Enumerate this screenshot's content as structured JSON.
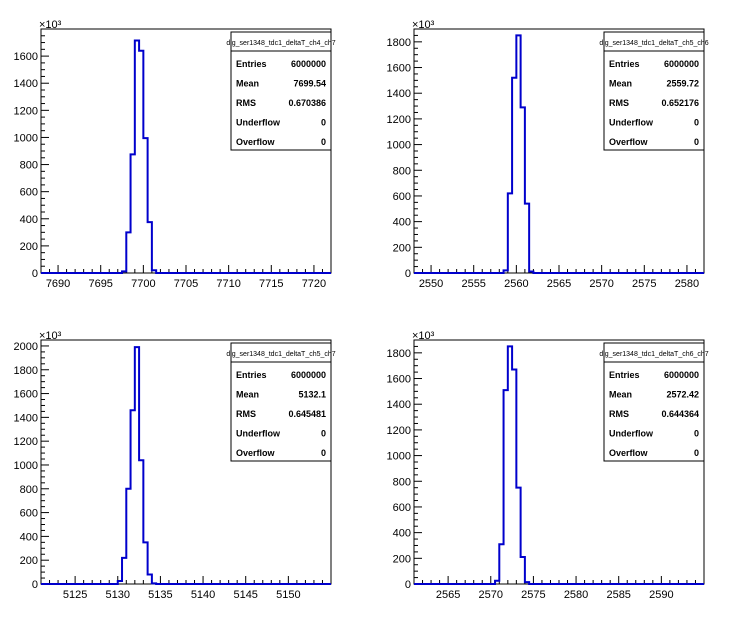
{
  "chart_data": [
    {
      "type": "histogram",
      "stats_title": "dig_ser1348_tdc1_deltaT_ch4_ch7",
      "exponent_label": "×10³",
      "xlim": [
        7688,
        7722
      ],
      "ylim": [
        0,
        1800
      ],
      "xticks": [
        7690,
        7695,
        7700,
        7705,
        7710,
        7715,
        7720
      ],
      "yticks": [
        0,
        200,
        400,
        600,
        800,
        1000,
        1200,
        1400,
        1600
      ],
      "bin_width": 0.5,
      "bins": [
        [
          7697.5,
          12
        ],
        [
          7698,
          300
        ],
        [
          7698.5,
          875
        ],
        [
          7699,
          1715
        ],
        [
          7699.5,
          1640
        ],
        [
          7700,
          995
        ],
        [
          7700.5,
          375
        ],
        [
          7701,
          20
        ]
      ],
      "stats": [
        {
          "label": "Entries",
          "value": "6000000"
        },
        {
          "label": "Mean",
          "value": "7699.54"
        },
        {
          "label": "RMS",
          "value": "0.670386"
        },
        {
          "label": "Underflow",
          "value": "0"
        },
        {
          "label": "Overflow",
          "value": "0"
        }
      ]
    },
    {
      "type": "histogram",
      "stats_title": "dig_ser1348_tdc1_deltaT_ch5_ch6",
      "exponent_label": "×10³",
      "xlim": [
        2548,
        2582
      ],
      "ylim": [
        0,
        1900
      ],
      "xticks": [
        2550,
        2555,
        2560,
        2565,
        2570,
        2575,
        2580
      ],
      "yticks": [
        0,
        200,
        400,
        600,
        800,
        1000,
        1200,
        1400,
        1600,
        1800
      ],
      "bin_width": 0.5,
      "bins": [
        [
          2558.5,
          20
        ],
        [
          2559,
          620
        ],
        [
          2559.5,
          1520
        ],
        [
          2560,
          1850
        ],
        [
          2560.5,
          1290
        ],
        [
          2561,
          540
        ],
        [
          2561.5,
          12
        ]
      ],
      "stats": [
        {
          "label": "Entries",
          "value": "6000000"
        },
        {
          "label": "Mean",
          "value": "2559.72"
        },
        {
          "label": "RMS",
          "value": "0.652176"
        },
        {
          "label": "Underflow",
          "value": "0"
        },
        {
          "label": "Overflow",
          "value": "0"
        }
      ]
    },
    {
      "type": "histogram",
      "stats_title": "dig_ser1348_tdc1_deltaT_ch5_ch7",
      "exponent_label": "×10³",
      "xlim": [
        5121,
        5155
      ],
      "ylim": [
        0,
        2050
      ],
      "xticks": [
        5125,
        5130,
        5135,
        5140,
        5145,
        5150
      ],
      "yticks": [
        0,
        200,
        400,
        600,
        800,
        1000,
        1200,
        1400,
        1600,
        1800,
        2000
      ],
      "bin_width": 0.5,
      "bins": [
        [
          5130,
          25
        ],
        [
          5130.5,
          220
        ],
        [
          5131,
          800
        ],
        [
          5131.5,
          1460
        ],
        [
          5132,
          1990
        ],
        [
          5132.5,
          1040
        ],
        [
          5133,
          350
        ],
        [
          5133.5,
          80
        ],
        [
          5134,
          5
        ]
      ],
      "stats": [
        {
          "label": "Entries",
          "value": "6000000"
        },
        {
          "label": "Mean",
          "value": "5132.1"
        },
        {
          "label": "RMS",
          "value": "0.645481"
        },
        {
          "label": "Underflow",
          "value": "0"
        },
        {
          "label": "Overflow",
          "value": "0"
        }
      ]
    },
    {
      "type": "histogram",
      "stats_title": "dig_ser1348_tdc1_deltaT_ch6_ch7",
      "exponent_label": "×10³",
      "xlim": [
        2561,
        2595
      ],
      "ylim": [
        0,
        1900
      ],
      "xticks": [
        2565,
        2570,
        2575,
        2580,
        2585,
        2590
      ],
      "yticks": [
        0,
        200,
        400,
        600,
        800,
        1000,
        1200,
        1400,
        1600,
        1800
      ],
      "bin_width": 0.5,
      "bins": [
        [
          2570.5,
          25
        ],
        [
          2571,
          310
        ],
        [
          2571.5,
          1510
        ],
        [
          2572,
          1850
        ],
        [
          2572.5,
          1670
        ],
        [
          2573,
          750
        ],
        [
          2573.5,
          210
        ],
        [
          2574,
          15
        ]
      ],
      "stats": [
        {
          "label": "Entries",
          "value": "6000000"
        },
        {
          "label": "Mean",
          "value": "2572.42"
        },
        {
          "label": "RMS",
          "value": "0.644364"
        },
        {
          "label": "Underflow",
          "value": "0"
        },
        {
          "label": "Overflow",
          "value": "0"
        }
      ]
    }
  ]
}
